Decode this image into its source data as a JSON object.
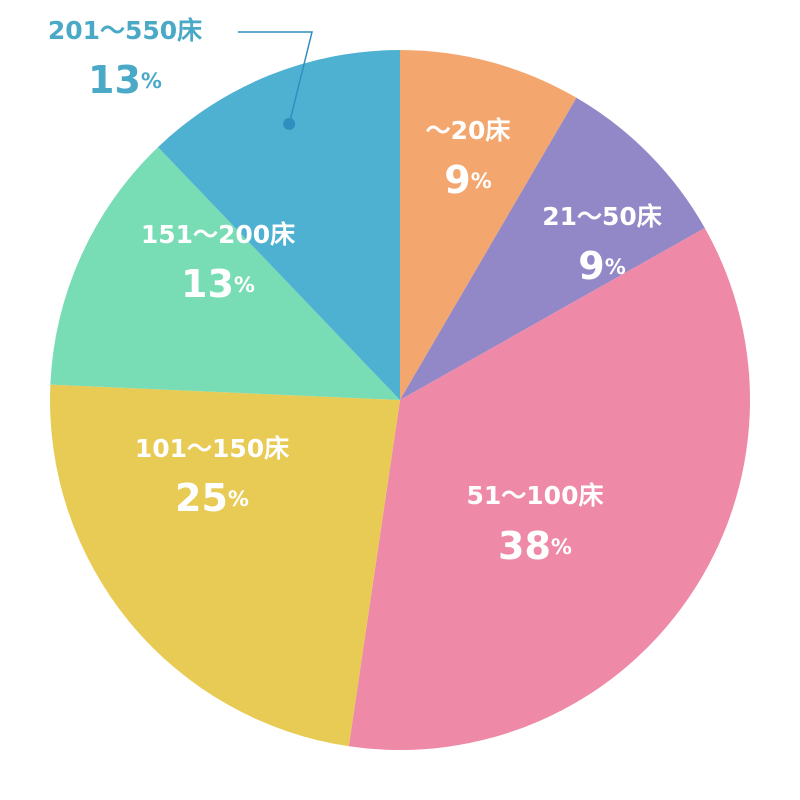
{
  "chart_data": {
    "type": "pie",
    "categories": [
      "～20床",
      "21～50床",
      "51～100床",
      "101～150床",
      "151～200床",
      "201～550床"
    ],
    "values": [
      9,
      9,
      38,
      25,
      13,
      13
    ],
    "unit": "%",
    "colors": [
      "#f3a76e",
      "#9287c7",
      "#ee8aa7",
      "#e8cb55",
      "#78dcb5",
      "#4fb1d1"
    ]
  }
}
